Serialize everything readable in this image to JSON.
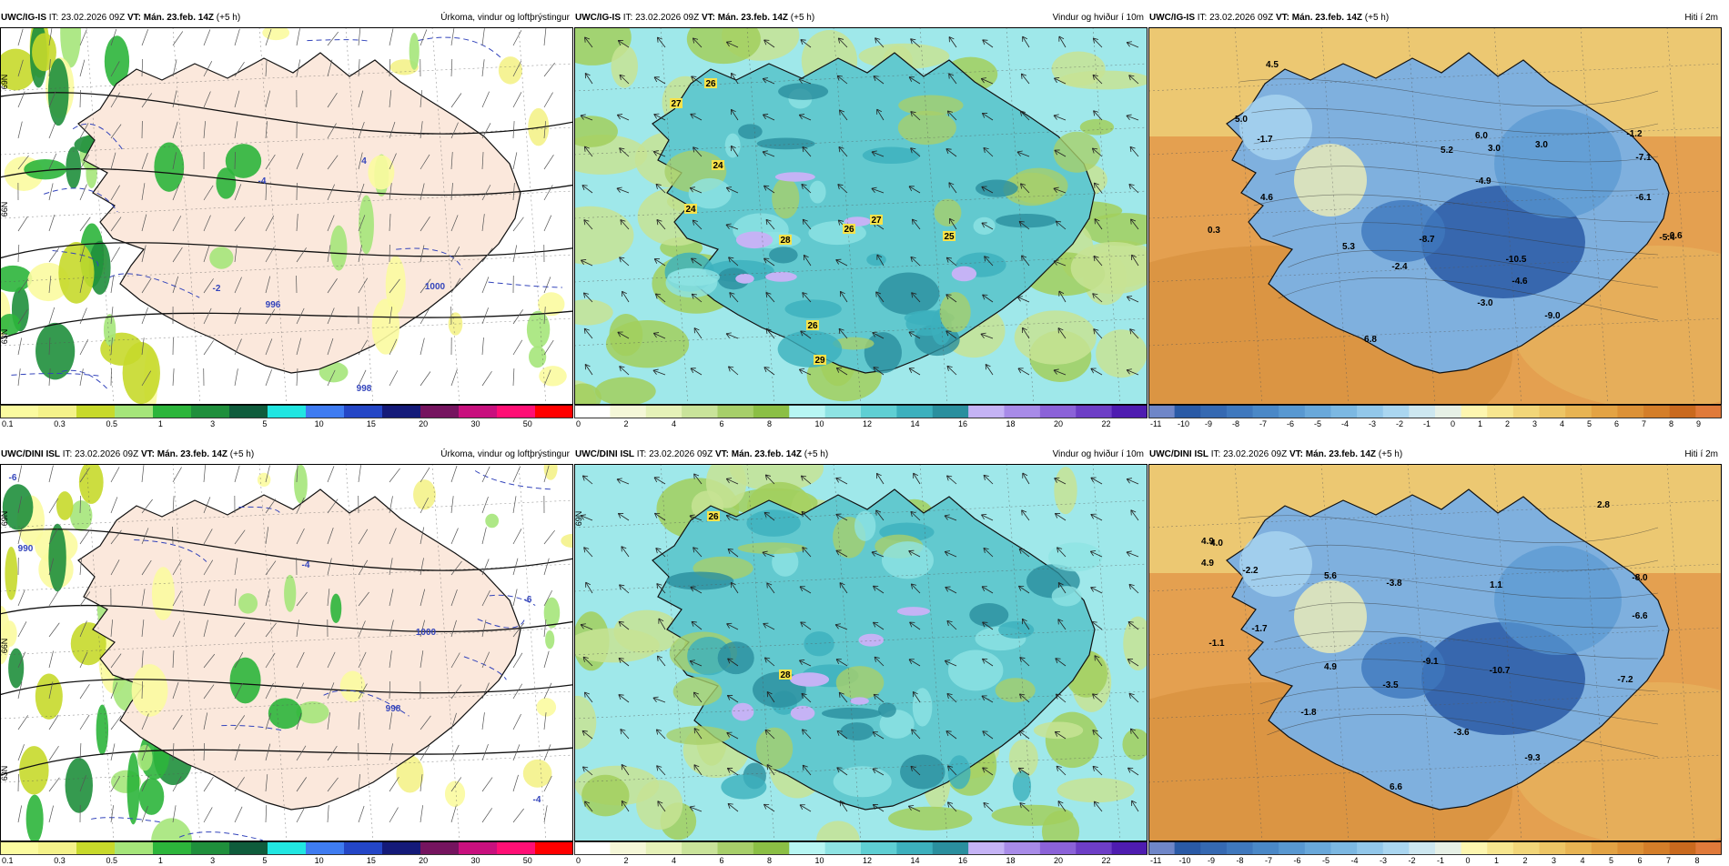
{
  "panels": [
    {
      "id": "igis-precip",
      "model": "UWC/IG-IS",
      "it_label": "IT:",
      "it_value": "23.02.2026 09Z",
      "vt_label": "VT:",
      "vt_value": "Mán. 23.feb. 14Z",
      "lead": "(+5 h)",
      "title": "Úrkoma, vindur og loftþrýstingur",
      "variable": "precip",
      "side_labels": [
        "69N",
        "66N",
        "63N"
      ],
      "map_labels": [
        "-4",
        "-2",
        "4",
        "998",
        "1000",
        "996"
      ],
      "colorbar": {
        "colors": [
          "#fbfba0",
          "#f4f28a",
          "#c7d92b",
          "#a5e57a",
          "#2cb53b",
          "#1f8f3c",
          "#0f5c3c",
          "#21e6e1",
          "#3f7cf1",
          "#2446c6",
          "#141a79",
          "#75145f",
          "#c8107e",
          "#ff0f75",
          "#ff0000"
        ],
        "ticks": [
          "0.1",
          "0.3",
          "0.5",
          "1",
          "3",
          "5",
          "10",
          "15",
          "20",
          "30",
          "50"
        ]
      }
    },
    {
      "id": "igis-wind",
      "model": "UWC/IG-IS",
      "it_label": "IT:",
      "it_value": "23.02.2026 09Z",
      "vt_label": "VT:",
      "vt_value": "Mán. 23.feb. 14Z",
      "lead": "(+5 h)",
      "title": "Vindur og hviður í 10m",
      "variable": "wind",
      "side_labels": [],
      "map_labels": [
        "26",
        "27",
        "24",
        "24",
        "28",
        "26",
        "27",
        "25",
        "26",
        "29"
      ],
      "colorbar": {
        "colors": [
          "#ffffff",
          "#f5f7d8",
          "#e5f1b8",
          "#c9e39a",
          "#a7cf6a",
          "#8bbf45",
          "#b7f6f3",
          "#8ee3e3",
          "#5fcfd3",
          "#3cb0bd",
          "#2a8f9e",
          "#c5b3f5",
          "#a88be8",
          "#8b62d8",
          "#6d3ec6",
          "#4e1cb0"
        ],
        "ticks": [
          "0",
          "2",
          "4",
          "6",
          "8",
          "10",
          "12",
          "14",
          "16",
          "18",
          "20",
          "22"
        ]
      }
    },
    {
      "id": "igis-temp",
      "model": "UWC/IG-IS",
      "it_label": "IT:",
      "it_value": "23.02.2026 09Z",
      "vt_label": "VT:",
      "vt_value": "Mán. 23.feb. 14Z",
      "lead": "(+5 h)",
      "title": "Hiti í 2m",
      "variable": "temp",
      "side_labels": [],
      "map_labels": [
        "4.5",
        "5.0",
        "-1.7",
        "5.2",
        "6.0",
        "3.0",
        "3.0",
        "-1.2",
        "-7.1",
        "4.6",
        "-4.9",
        "-6.1",
        "0.3",
        "5.3",
        "-8.7",
        "-10.5",
        "-5.4",
        "-0.6",
        "-2.4",
        "-4.6",
        "-3.0",
        "-9.0",
        "6.8"
      ],
      "colorbar": {
        "colors": [
          "#6f86c8",
          "#2a5aa6",
          "#3569b2",
          "#3f78bd",
          "#4a88c7",
          "#5898d1",
          "#69a8da",
          "#7cb8e2",
          "#92c7ea",
          "#aad6f0",
          "#cde7f0",
          "#e6f0e6",
          "#fdf6b0",
          "#f7e68f",
          "#f2d679",
          "#edc565",
          "#e8b453",
          "#e3a344",
          "#dc9136",
          "#d47e29",
          "#c9691e",
          "#e07a3a"
        ],
        "ticks": [
          "-11",
          "-10",
          "-9",
          "-8",
          "-7",
          "-6",
          "-5",
          "-4",
          "-3",
          "-2",
          "-1",
          "0",
          "1",
          "2",
          "3",
          "4",
          "5",
          "6",
          "7",
          "8",
          "9"
        ]
      }
    },
    {
      "id": "dini-precip",
      "model": "UWC/DINI ISL",
      "it_label": "IT:",
      "it_value": "23.02.2026 09Z",
      "vt_label": "VT:",
      "vt_value": "Mán. 23.feb. 14Z",
      "lead": "(+5 h)",
      "title": "Úrkoma, vindur og loftþrýstingur",
      "variable": "precip",
      "side_labels": [
        "69N",
        "66N",
        "63N"
      ],
      "map_labels": [
        "-6",
        "990",
        "-4",
        "-6",
        "1000",
        "998",
        "-4"
      ],
      "colorbar": {
        "colors": [
          "#fbfba0",
          "#f4f28a",
          "#c7d92b",
          "#a5e57a",
          "#2cb53b",
          "#1f8f3c",
          "#0f5c3c",
          "#21e6e1",
          "#3f7cf1",
          "#2446c6",
          "#141a79",
          "#75145f",
          "#c8107e",
          "#ff0f75",
          "#ff0000"
        ],
        "ticks": [
          "0.1",
          "0.3",
          "0.5",
          "1",
          "3",
          "5",
          "10",
          "15",
          "20",
          "30",
          "50"
        ]
      }
    },
    {
      "id": "dini-wind",
      "model": "UWC/DINI ISL",
      "it_label": "IT:",
      "it_value": "23.02.2026 09Z",
      "vt_label": "VT:",
      "vt_value": "Mán. 23.feb. 14Z",
      "lead": "(+5 h)",
      "title": "Vindur og hviður í 10m",
      "variable": "wind",
      "side_labels": [
        "69N"
      ],
      "map_labels": [
        "26",
        "28"
      ],
      "colorbar": {
        "colors": [
          "#ffffff",
          "#f5f7d8",
          "#e5f1b8",
          "#c9e39a",
          "#a7cf6a",
          "#8bbf45",
          "#b7f6f3",
          "#8ee3e3",
          "#5fcfd3",
          "#3cb0bd",
          "#2a8f9e",
          "#c5b3f5",
          "#a88be8",
          "#8b62d8",
          "#6d3ec6",
          "#4e1cb0"
        ],
        "ticks": [
          "0",
          "2",
          "4",
          "6",
          "8",
          "10",
          "12",
          "14",
          "16",
          "18",
          "20",
          "22"
        ]
      }
    },
    {
      "id": "dini-temp",
      "model": "UWC/DINI ISL",
      "it_label": "IT:",
      "it_value": "23.02.2026 09Z",
      "vt_label": "VT:",
      "vt_value": "Mán. 23.feb. 14Z",
      "lead": "(+5 h)",
      "title": "Hiti í 2m",
      "variable": "temp",
      "side_labels": [],
      "map_labels": [
        "4.9",
        "2.8",
        "4.0",
        "4.9",
        "-2.2",
        "5.6",
        "-3.8",
        "1.1",
        "-8.0",
        "-1.7",
        "-6.6",
        "-1.1",
        "4.9",
        "-9.1",
        "-10.7",
        "-7.2",
        "-3.5",
        "-1.8",
        "-3.6",
        "-9.3",
        "6.6"
      ],
      "colorbar": {
        "colors": [
          "#6f86c8",
          "#2a5aa6",
          "#3569b2",
          "#3f78bd",
          "#4a88c7",
          "#5898d1",
          "#69a8da",
          "#7cb8e2",
          "#92c7ea",
          "#aad6f0",
          "#cde7f0",
          "#e6f0e6",
          "#fdf6b0",
          "#f7e68f",
          "#f2d679",
          "#edc565",
          "#e8b453",
          "#e3a344",
          "#dc9136",
          "#d47e29",
          "#c9691e",
          "#e07a3a"
        ],
        "ticks": [
          "-11",
          "-10",
          "-9",
          "-8",
          "-7",
          "-6",
          "-5",
          "-4",
          "-3",
          "-2",
          "-1",
          "0",
          "1",
          "2",
          "3",
          "4",
          "5",
          "6",
          "7",
          "8"
        ]
      }
    }
  ]
}
